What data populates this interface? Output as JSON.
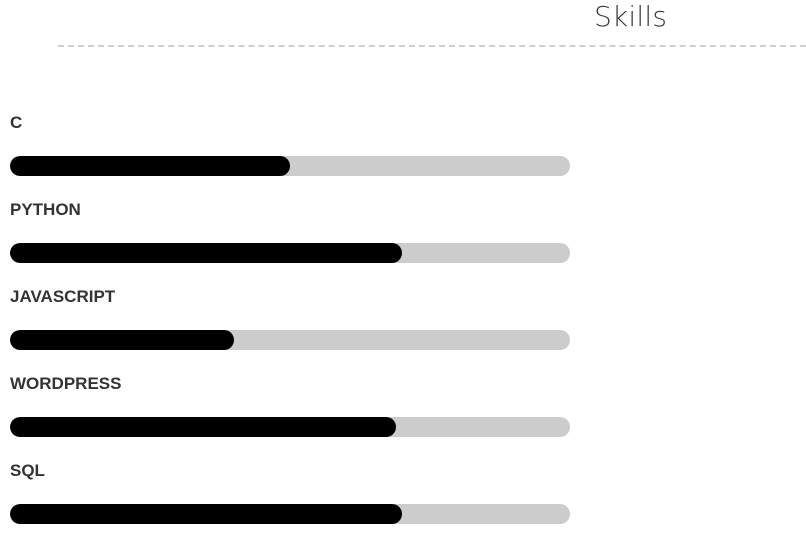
{
  "header": {
    "title": "Skills"
  },
  "colors": {
    "bar_fill": "#000000",
    "bar_track": "#cccccc",
    "label": "#333333",
    "divider": "#cfcfcf"
  },
  "skills": [
    {
      "name": "C",
      "level_percent": 50
    },
    {
      "name": "PYTHON",
      "level_percent": 70
    },
    {
      "name": "JAVASCRIPT",
      "level_percent": 40
    },
    {
      "name": "WORDPRESS",
      "level_percent": 69
    },
    {
      "name": "SQL",
      "level_percent": 70
    }
  ]
}
